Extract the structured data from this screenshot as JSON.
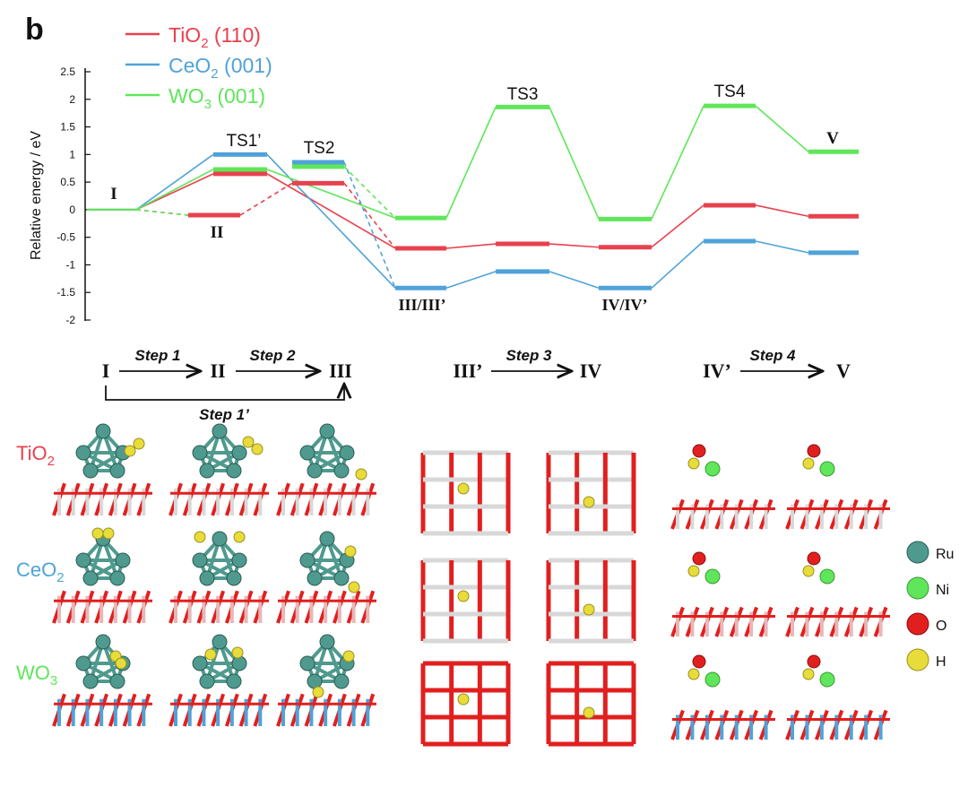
{
  "panel_label": "b",
  "colors": {
    "TiO2": "#e8414e",
    "CeO2": "#4fa3d8",
    "WO3": "#5fe65a",
    "axis": "#111111"
  },
  "chart_data": {
    "type": "line",
    "ylabel": "Relative energy / eV",
    "ylim": [
      -2,
      2.5
    ],
    "yticks": [
      "2.5",
      "2",
      "1.5",
      "1",
      "0.5",
      "0",
      "-0.5",
      "-1",
      "-1.5",
      "-2"
    ],
    "legend": [
      {
        "key": "TiO2",
        "base": "TiO",
        "sub": "2",
        "rest": " (110)"
      },
      {
        "key": "CeO2",
        "base": "CeO",
        "sub": "2",
        "rest": " (001)"
      },
      {
        "key": "WO3",
        "base": "WO",
        "sub": "3",
        "rest": " (001)"
      }
    ],
    "state_labels": {
      "I": "I",
      "II": "II",
      "TS1": "TS1’",
      "TS2": "TS2",
      "III": "III/III’",
      "TS3": "TS3",
      "IV": "IV/IV’",
      "TS4": "TS4",
      "V": "V"
    },
    "series": [
      {
        "key": "TiO2",
        "name": "TiO2 (110)",
        "levels": {
          "I": 0,
          "II": -0.1,
          "TS1": 0.65,
          "TS2": 0.48,
          "III": -0.7,
          "TS3": -0.62,
          "IV": -0.68,
          "TS4": 0.08,
          "V": -0.12
        }
      },
      {
        "key": "CeO2",
        "name": "CeO2 (001)",
        "levels": {
          "I": 0,
          "TS1": 1.0,
          "TS2": 0.86,
          "III": -1.42,
          "TS3": -1.12,
          "IV": -1.42,
          "TS4": -0.57,
          "V": -0.78
        }
      },
      {
        "key": "WO3",
        "name": "WO3 (001)",
        "levels": {
          "I": 0,
          "TS1": 0.73,
          "TS2": 0.78,
          "III": -0.15,
          "TS3": 1.86,
          "IV": -0.17,
          "TS4": 1.88,
          "V": 1.05
        }
      }
    ]
  },
  "steps": {
    "row1": [
      "I",
      "II",
      "III"
    ],
    "row2": [
      "III’",
      "IV"
    ],
    "row3": [
      "IV’",
      "V"
    ],
    "labels": [
      "Step 1",
      "Step 2",
      "Step 1’",
      "Step 3",
      "Step 4"
    ]
  },
  "structures": {
    "rows": [
      {
        "base": "TiO",
        "sub": "2",
        "color": "#e8414e"
      },
      {
        "base": "CeO",
        "sub": "2",
        "color": "#4fa3d8"
      },
      {
        "base": "WO",
        "sub": "3",
        "color": "#5fe65a"
      }
    ],
    "atom_legend": [
      {
        "label": "Ru",
        "color": "#4f9a8e"
      },
      {
        "label": "Ni",
        "color": "#5fe65a"
      },
      {
        "label": "O",
        "color": "#e21f1f"
      },
      {
        "label": "H",
        "color": "#e8dc3a"
      }
    ]
  }
}
